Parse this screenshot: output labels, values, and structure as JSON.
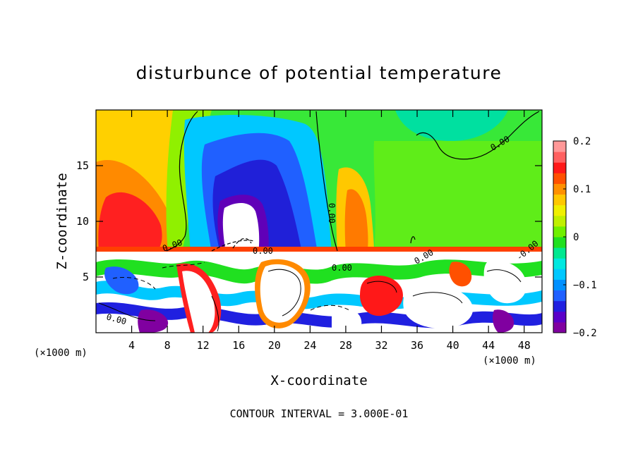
{
  "chart_data": {
    "type": "heatmap",
    "title": "disturbunce of potential temperature",
    "xlabel": "X-coordinate",
    "ylabel": "Z-coordinate",
    "x_unit_left": "(×1000 m)",
    "x_unit_right": "(×1000 m)",
    "footer": "CONTOUR INTERVAL = 3.000E-01",
    "xlim": [
      0,
      50
    ],
    "ylim": [
      0,
      20
    ],
    "x_ticks": [
      4,
      8,
      12,
      16,
      20,
      24,
      28,
      32,
      36,
      40,
      44,
      48
    ],
    "x_tick_labels": [
      "4",
      "8",
      "12",
      "16",
      "20",
      "24",
      "28",
      "32",
      "36",
      "40",
      "44",
      "48"
    ],
    "y_ticks": [
      5,
      10,
      15
    ],
    "y_tick_labels": [
      "5",
      "10",
      "15"
    ],
    "colorbar": {
      "range": [
        -0.2,
        0.2
      ],
      "ticks": [
        0.2,
        0.1,
        0,
        -0.1,
        -0.2
      ],
      "tick_labels": [
        "0.2",
        "0.1",
        "0",
        "−0.1",
        "−0.2"
      ],
      "colors": [
        "#8000a0",
        "#5a00c8",
        "#2020e0",
        "#2060ff",
        "#0090ff",
        "#00c8ff",
        "#00e8e0",
        "#00e890",
        "#20e020",
        "#70f000",
        "#c0f000",
        "#f0f000",
        "#ffc800",
        "#ff9000",
        "#ff5000",
        "#ff1818",
        "#ff6060",
        "#ff9898"
      ]
    },
    "contour_labels": [
      "0.00",
      "0.00",
      "0.00",
      "0.00",
      "0.00",
      "0.00",
      "-0.00",
      "0.00"
    ]
  }
}
